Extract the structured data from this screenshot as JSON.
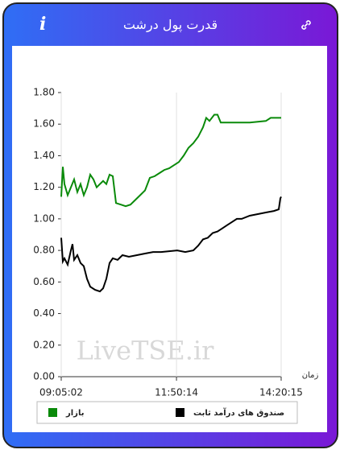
{
  "header": {
    "title": "قدرت پول درشت",
    "info": "i"
  },
  "chart_data": {
    "type": "line",
    "watermark": "LiveTSE.ir",
    "x_label": "زمان",
    "xlim": [
      32702,
      51615
    ],
    "xticks": [
      {
        "value": 32702,
        "label": "09:05:02"
      },
      {
        "value": 42614,
        "label": "11:50:14"
      },
      {
        "value": 51615,
        "label": "14:20:15"
      }
    ],
    "ylim": [
      0,
      1.8
    ],
    "yticks": [
      {
        "value": 0,
        "label": "0.00"
      },
      {
        "value": 0.2,
        "label": "0.20"
      },
      {
        "value": 0.4,
        "label": "0.40"
      },
      {
        "value": 0.6,
        "label": "0.60"
      },
      {
        "value": 0.8,
        "label": "0.80"
      },
      {
        "value": 1,
        "label": "1.00"
      },
      {
        "value": 1.2,
        "label": "1.20"
      },
      {
        "value": 1.4,
        "label": "1.40"
      },
      {
        "value": 1.6,
        "label": "1.60"
      },
      {
        "value": 1.8,
        "label": "1.80"
      }
    ],
    "grid": true,
    "series": [
      {
        "name": "بازار",
        "color": "#0a8a0a",
        "x": [
          32702,
          32841,
          32979,
          33256,
          33533,
          33810,
          34088,
          34365,
          34642,
          34919,
          35196,
          35473,
          35750,
          36027,
          36305,
          36582,
          36859,
          37136,
          37413,
          37829,
          38244,
          38660,
          39076,
          39491,
          39907,
          40323,
          40738,
          41154,
          41570,
          41986,
          42401,
          42817,
          43233,
          43648,
          44064,
          44480,
          44895,
          45172,
          45450,
          45865,
          46142,
          46419,
          47528,
          48914,
          50299,
          50715,
          51615
        ],
        "values": [
          1.14,
          1.33,
          1.22,
          1.15,
          1.2,
          1.25,
          1.17,
          1.22,
          1.15,
          1.2,
          1.28,
          1.25,
          1.2,
          1.22,
          1.24,
          1.22,
          1.28,
          1.27,
          1.1,
          1.09,
          1.08,
          1.09,
          1.12,
          1.15,
          1.18,
          1.26,
          1.27,
          1.29,
          1.31,
          1.32,
          1.34,
          1.36,
          1.4,
          1.45,
          1.48,
          1.52,
          1.58,
          1.64,
          1.62,
          1.66,
          1.66,
          1.61,
          1.61,
          1.61,
          1.62,
          1.64,
          1.64
        ]
      },
      {
        "name": "صندوق های درآمد ثابت",
        "color": "#000000",
        "x": [
          32702,
          32841,
          32979,
          33256,
          33533,
          33672,
          33810,
          34088,
          34365,
          34642,
          34919,
          35196,
          35612,
          36027,
          36305,
          36582,
          36859,
          37136,
          37552,
          37967,
          38522,
          39214,
          39907,
          40600,
          41293,
          42678,
          43371,
          44064,
          44480,
          44895,
          45311,
          45727,
          46142,
          46558,
          46974,
          47389,
          47805,
          48221,
          48914,
          49606,
          50299,
          50992,
          51408,
          51546,
          51615
        ],
        "values": [
          0.88,
          0.73,
          0.75,
          0.71,
          0.8,
          0.84,
          0.74,
          0.77,
          0.72,
          0.7,
          0.62,
          0.57,
          0.55,
          0.54,
          0.56,
          0.62,
          0.72,
          0.75,
          0.74,
          0.77,
          0.76,
          0.77,
          0.78,
          0.79,
          0.79,
          0.8,
          0.79,
          0.8,
          0.83,
          0.87,
          0.88,
          0.91,
          0.92,
          0.94,
          0.96,
          0.98,
          1.0,
          1.0,
          1.02,
          1.03,
          1.04,
          1.05,
          1.06,
          1.13,
          1.14
        ]
      }
    ]
  }
}
